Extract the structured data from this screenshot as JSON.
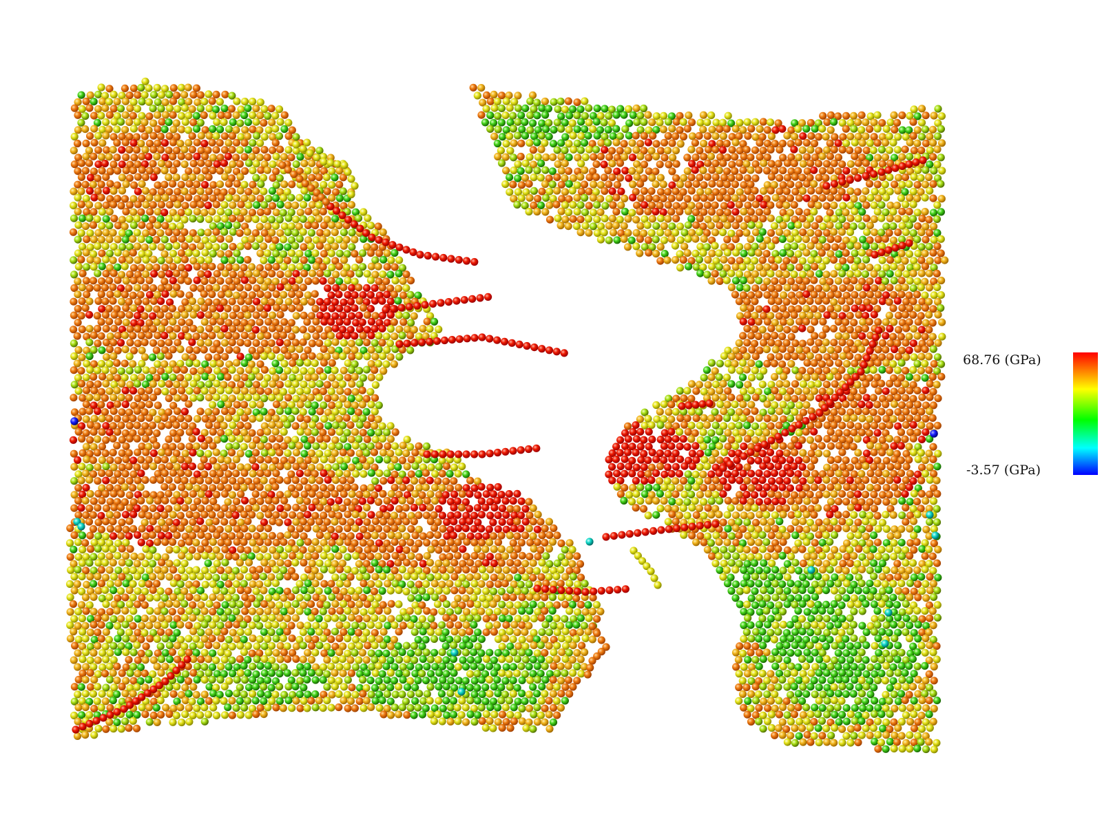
{
  "legend": {
    "max_label": "68.76 (GPa)",
    "min_label": "-3.57 (GPa)",
    "max_value": 68.76,
    "min_value": -3.57,
    "colormap": [
      "#ff0000",
      "#ffff00",
      "#00ff00",
      "#00ffff",
      "#0000ff"
    ]
  },
  "colors": {
    "high_stress": "#e80000",
    "medium_high": "#f07800",
    "medium": "#f0c000",
    "low": "#d8e800",
    "lower": "#66dd00",
    "negative": "#1515ff"
  }
}
